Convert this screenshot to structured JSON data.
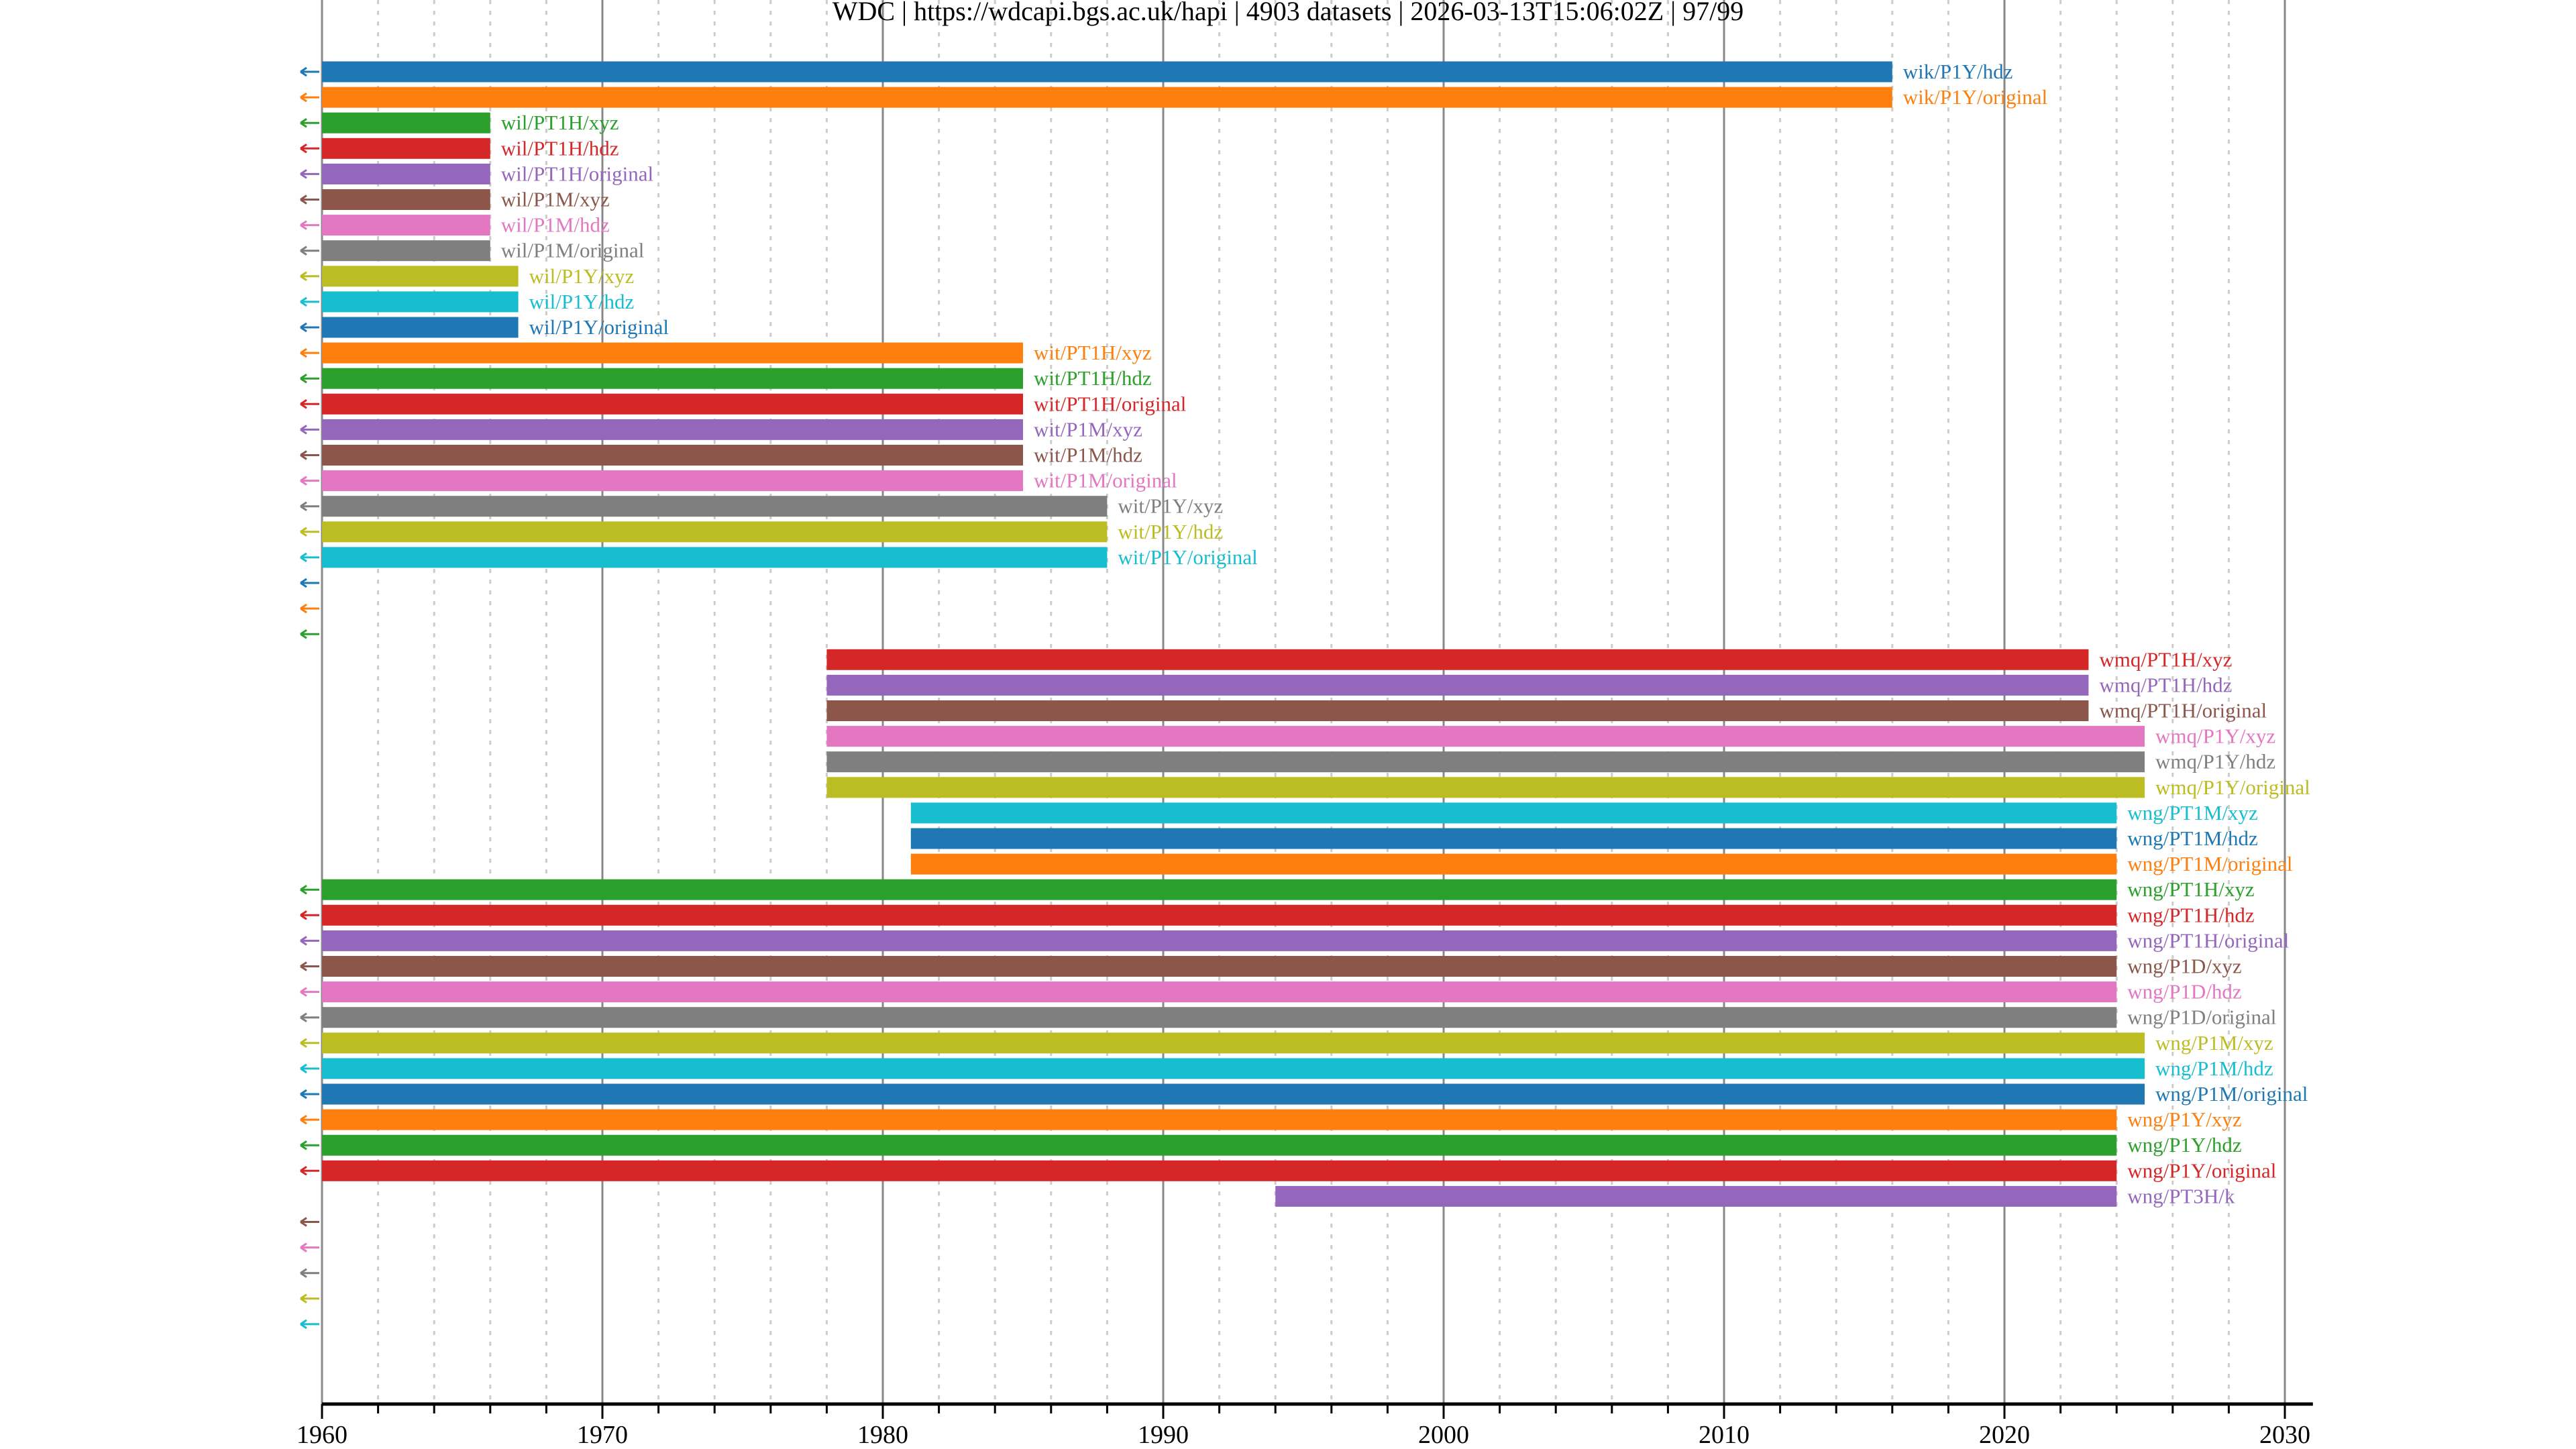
{
  "chart_data": {
    "type": "timeline",
    "title": "WDC | https://wdcapi.bgs.ac.uk/hapi | 4903 datasets | 2026-03-13T15:06:02Z | 97/99",
    "xlabel": "",
    "ylabel": "",
    "xlim": [
      1960,
      2031
    ],
    "xticks": [
      "1960",
      "1970",
      "1980",
      "1990",
      "2000",
      "2010",
      "2020",
      "2030"
    ],
    "grid": {
      "major_years": 10,
      "minor_years": 2,
      "major_style": "solid",
      "minor_style": "dotted"
    },
    "colors": [
      "#1f77b4",
      "#ff7f0e",
      "#2ca02c",
      "#d62728",
      "#9467bd",
      "#8c564b",
      "#e377c2",
      "#7f7f7f",
      "#bcbd22",
      "#17becf"
    ],
    "rows": [
      {
        "label": "wik/P1Y/hdz",
        "start": 1960,
        "end": 2016,
        "earlier": true
      },
      {
        "label": "wik/P1Y/original",
        "start": 1960,
        "end": 2016,
        "earlier": true
      },
      {
        "label": "wil/PT1H/xyz",
        "start": 1960,
        "end": 1966,
        "earlier": true
      },
      {
        "label": "wil/PT1H/hdz",
        "start": 1960,
        "end": 1966,
        "earlier": true
      },
      {
        "label": "wil/PT1H/original",
        "start": 1960,
        "end": 1966,
        "earlier": true
      },
      {
        "label": "wil/P1M/xyz",
        "start": 1960,
        "end": 1966,
        "earlier": true
      },
      {
        "label": "wil/P1M/hdz",
        "start": 1960,
        "end": 1966,
        "earlier": true
      },
      {
        "label": "wil/P1M/original",
        "start": 1960,
        "end": 1966,
        "earlier": true
      },
      {
        "label": "wil/P1Y/xyz",
        "start": 1960,
        "end": 1967,
        "earlier": true
      },
      {
        "label": "wil/P1Y/hdz",
        "start": 1960,
        "end": 1967,
        "earlier": true
      },
      {
        "label": "wil/P1Y/original",
        "start": 1960,
        "end": 1967,
        "earlier": true
      },
      {
        "label": "wit/PT1H/xyz",
        "start": 1960,
        "end": 1985,
        "earlier": true
      },
      {
        "label": "wit/PT1H/hdz",
        "start": 1960,
        "end": 1985,
        "earlier": true
      },
      {
        "label": "wit/PT1H/original",
        "start": 1960,
        "end": 1985,
        "earlier": true
      },
      {
        "label": "wit/P1M/xyz",
        "start": 1960,
        "end": 1985,
        "earlier": true
      },
      {
        "label": "wit/P1M/hdz",
        "start": 1960,
        "end": 1985,
        "earlier": true
      },
      {
        "label": "wit/P1M/original",
        "start": 1960,
        "end": 1985,
        "earlier": true
      },
      {
        "label": "wit/P1Y/xyz",
        "start": 1960,
        "end": 1988,
        "earlier": true
      },
      {
        "label": "wit/P1Y/hdz",
        "start": 1960,
        "end": 1988,
        "earlier": true
      },
      {
        "label": "wit/P1Y/original",
        "start": 1960,
        "end": 1988,
        "earlier": true
      },
      {
        "label": "",
        "start": null,
        "end": null,
        "earlier": true
      },
      {
        "label": "",
        "start": null,
        "end": null,
        "earlier": true
      },
      {
        "label": "",
        "start": null,
        "end": null,
        "earlier": true
      },
      {
        "label": "wmq/PT1H/xyz",
        "start": 1978,
        "end": 2023,
        "earlier": false
      },
      {
        "label": "wmq/PT1H/hdz",
        "start": 1978,
        "end": 2023,
        "earlier": false
      },
      {
        "label": "wmq/PT1H/original",
        "start": 1978,
        "end": 2023,
        "earlier": false
      },
      {
        "label": "wmq/P1Y/xyz",
        "start": 1978,
        "end": 2025,
        "earlier": false
      },
      {
        "label": "wmq/P1Y/hdz",
        "start": 1978,
        "end": 2025,
        "earlier": false
      },
      {
        "label": "wmq/P1Y/original",
        "start": 1978,
        "end": 2025,
        "earlier": false
      },
      {
        "label": "wng/PT1M/xyz",
        "start": 1981,
        "end": 2024,
        "earlier": false
      },
      {
        "label": "wng/PT1M/hdz",
        "start": 1981,
        "end": 2024,
        "earlier": false
      },
      {
        "label": "wng/PT1M/original",
        "start": 1981,
        "end": 2024,
        "earlier": false
      },
      {
        "label": "wng/PT1H/xyz",
        "start": 1960,
        "end": 2024,
        "earlier": true
      },
      {
        "label": "wng/PT1H/hdz",
        "start": 1960,
        "end": 2024,
        "earlier": true
      },
      {
        "label": "wng/PT1H/original",
        "start": 1960,
        "end": 2024,
        "earlier": true
      },
      {
        "label": "wng/P1D/xyz",
        "start": 1960,
        "end": 2024,
        "earlier": true
      },
      {
        "label": "wng/P1D/hdz",
        "start": 1960,
        "end": 2024,
        "earlier": true
      },
      {
        "label": "wng/P1D/original",
        "start": 1960,
        "end": 2024,
        "earlier": true
      },
      {
        "label": "wng/P1M/xyz",
        "start": 1960,
        "end": 2025,
        "earlier": true
      },
      {
        "label": "wng/P1M/hdz",
        "start": 1960,
        "end": 2025,
        "earlier": true
      },
      {
        "label": "wng/P1M/original",
        "start": 1960,
        "end": 2025,
        "earlier": true
      },
      {
        "label": "wng/P1Y/xyz",
        "start": 1960,
        "end": 2024,
        "earlier": true
      },
      {
        "label": "wng/P1Y/hdz",
        "start": 1960,
        "end": 2024,
        "earlier": true
      },
      {
        "label": "wng/P1Y/original",
        "start": 1960,
        "end": 2024,
        "earlier": true
      },
      {
        "label": "wng/PT3H/k",
        "start": 1994,
        "end": 2024,
        "earlier": false
      },
      {
        "label": "",
        "start": null,
        "end": null,
        "earlier": true
      },
      {
        "label": "",
        "start": null,
        "end": null,
        "earlier": true
      },
      {
        "label": "",
        "start": null,
        "end": null,
        "earlier": true
      },
      {
        "label": "",
        "start": null,
        "end": null,
        "earlier": true
      },
      {
        "label": "",
        "start": null,
        "end": null,
        "earlier": true
      }
    ]
  }
}
